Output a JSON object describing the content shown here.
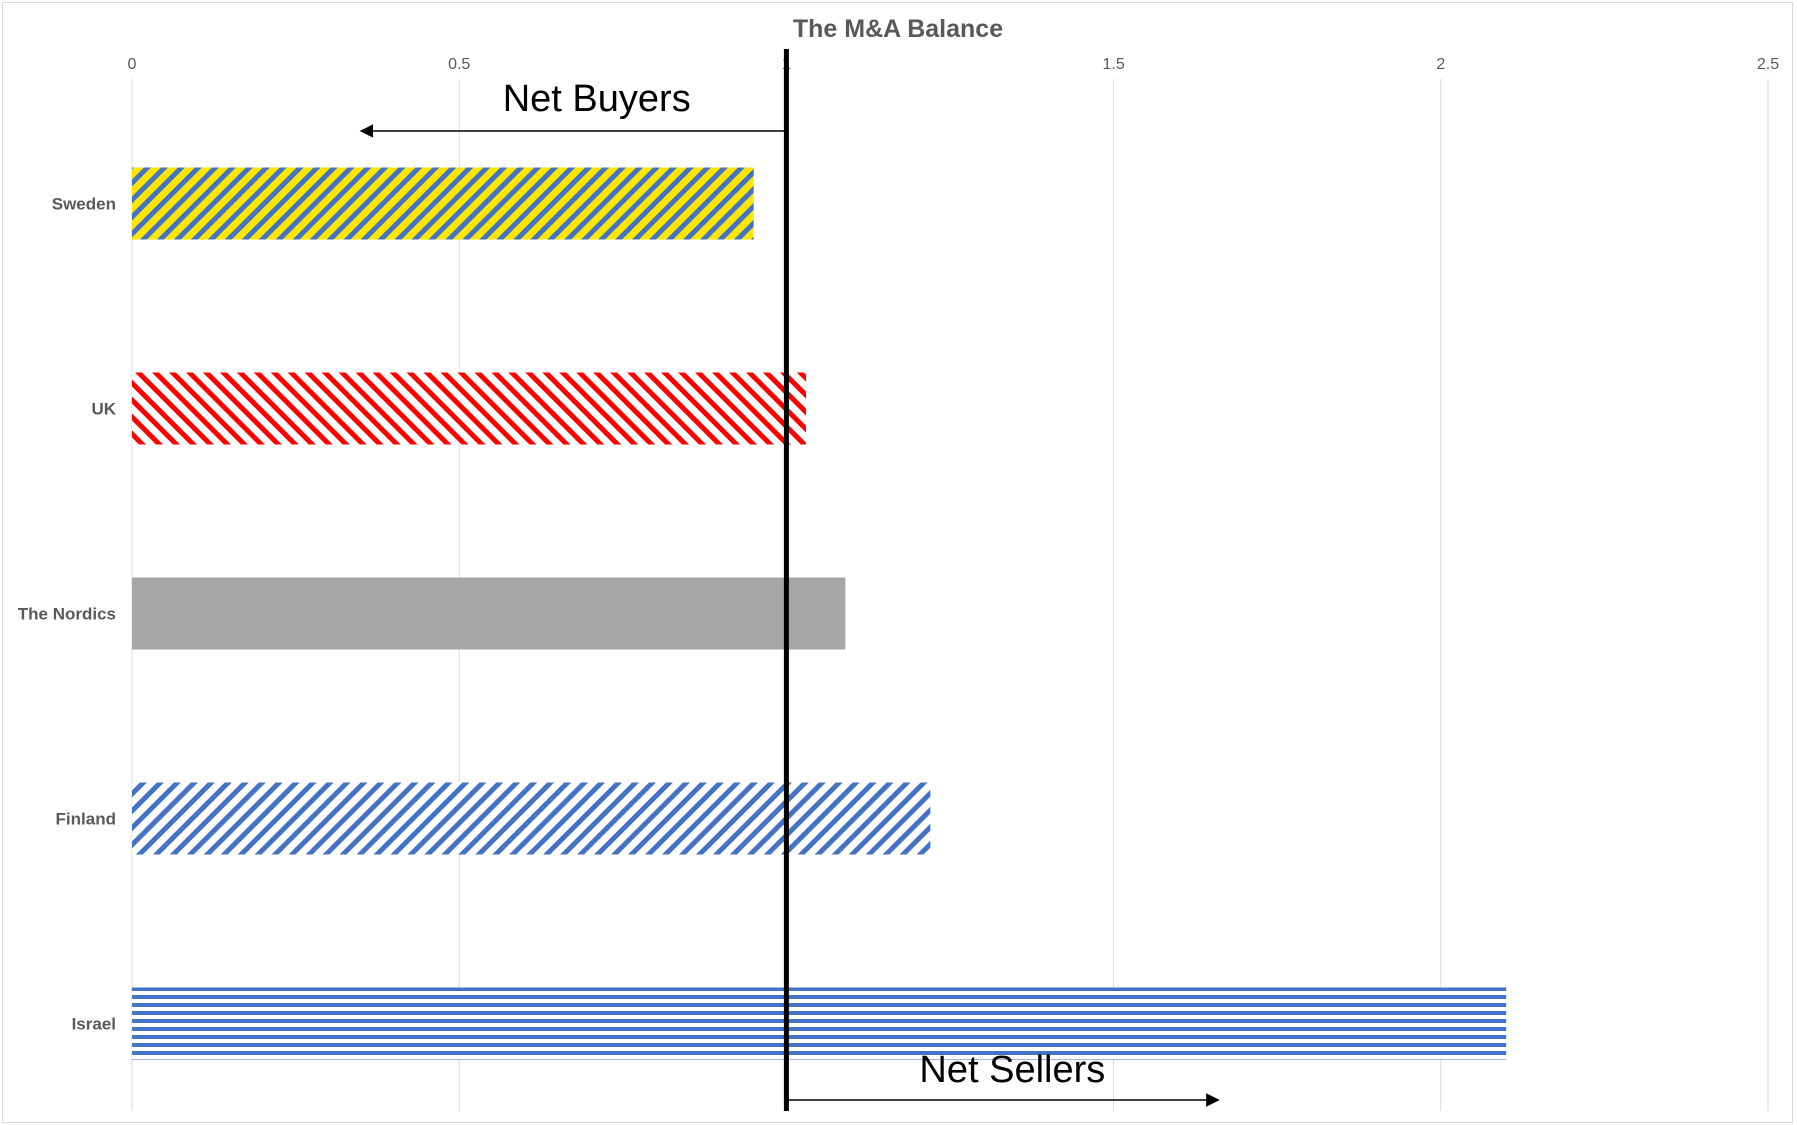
{
  "chart_data": {
    "type": "bar",
    "orientation": "horizontal",
    "title": "The M&A Balance",
    "categories": [
      "Sweden",
      "UK",
      "The Nordics",
      "Finland",
      "Israel"
    ],
    "values": [
      0.95,
      1.03,
      1.09,
      1.22,
      2.1
    ],
    "xlim": [
      0,
      2.5
    ],
    "x_ticks": [
      "0",
      "0.5",
      "1",
      "1.5",
      "2",
      "2.5"
    ],
    "x_tick_values": [
      0,
      0.5,
      1,
      1.5,
      2,
      2.5
    ],
    "x_axis_position": "top",
    "grid": true,
    "legend": "none",
    "bar_styles": [
      {
        "pattern": "diagonal-stripes",
        "colors": [
          "#ffe600",
          "#4472c4"
        ]
      },
      {
        "pattern": "diagonal-stripes",
        "colors": [
          "#ff0000",
          "#ffffff"
        ]
      },
      {
        "pattern": "solid",
        "colors": [
          "#a6a6a6"
        ]
      },
      {
        "pattern": "diagonal-stripes",
        "colors": [
          "#4472c4",
          "#ffffff"
        ]
      },
      {
        "pattern": "horizontal-stripes",
        "colors": [
          "#4472c4",
          "#ffffff"
        ]
      }
    ],
    "reference_line": {
      "x": 1,
      "color": "#000000"
    },
    "annotations": [
      {
        "text": "Net Buyers",
        "arrow": "left",
        "arrow_from": 1,
        "arrow_to": 0.35
      },
      {
        "text": "Net Sellers",
        "arrow": "right",
        "arrow_from": 1,
        "arrow_to": 1.66
      }
    ]
  }
}
